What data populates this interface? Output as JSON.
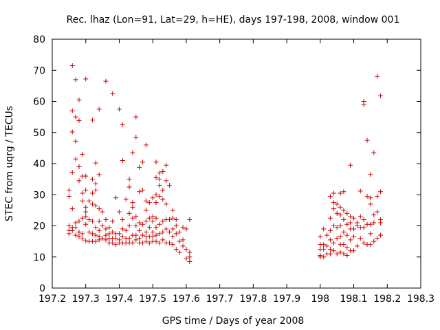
{
  "chart_data": {
    "type": "scatter",
    "title": "Rec. lhaz (Lon=91, Lat=29, h=HE), days 197-198, 2008, window 001",
    "xlabel": "GPS time / Days of year 2008",
    "ylabel": "STEC from uqrg / TECUs",
    "xlim": [
      197.2,
      198.3
    ],
    "ylim": [
      0,
      80
    ],
    "xticks": [
      197.2,
      197.3,
      197.4,
      197.5,
      197.6,
      197.7,
      197.8,
      197.9,
      198,
      198.1,
      198.2,
      198.3
    ],
    "xtick_labels": [
      "197.2",
      "197.3",
      "197.4",
      "197.5",
      "197.6",
      "197.7",
      "197.8",
      "197.9",
      "198",
      "198.1",
      "198.2",
      "198.3"
    ],
    "yticks": [
      0,
      10,
      20,
      30,
      40,
      50,
      60,
      70,
      80
    ],
    "ytick_labels": [
      "0",
      "10",
      "20",
      "30",
      "40",
      "50",
      "60",
      "70",
      "80"
    ],
    "marker": "+",
    "marker_color": "#cc0000",
    "grid": false,
    "series": [
      {
        "name": "STEC",
        "points": [
          [
            197.25,
            31.5
          ],
          [
            197.25,
            29.5
          ],
          [
            197.25,
            20
          ],
          [
            197.25,
            18.5
          ],
          [
            197.25,
            17.5
          ],
          [
            197.26,
            71.5
          ],
          [
            197.26,
            57
          ],
          [
            197.26,
            50.2
          ],
          [
            197.26,
            37.2
          ],
          [
            197.26,
            25.5
          ],
          [
            197.26,
            19.5
          ],
          [
            197.26,
            18.5
          ],
          [
            197.27,
            67
          ],
          [
            197.27,
            55
          ],
          [
            197.27,
            47.2
          ],
          [
            197.27,
            41.5
          ],
          [
            197.27,
            21
          ],
          [
            197.27,
            19.5
          ],
          [
            197.27,
            17
          ],
          [
            197.28,
            60.5
          ],
          [
            197.28,
            53.8
          ],
          [
            197.28,
            39
          ],
          [
            197.28,
            34.5
          ],
          [
            197.28,
            21.5
          ],
          [
            197.28,
            18
          ],
          [
            197.28,
            16.5
          ],
          [
            197.29,
            43
          ],
          [
            197.29,
            36
          ],
          [
            197.29,
            30.5
          ],
          [
            197.29,
            28
          ],
          [
            197.29,
            22.5
          ],
          [
            197.29,
            17.5
          ],
          [
            197.29,
            15.8
          ],
          [
            197.3,
            67.2
          ],
          [
            197.3,
            36
          ],
          [
            197.3,
            31.5
          ],
          [
            197.3,
            26
          ],
          [
            197.3,
            24.5
          ],
          [
            197.3,
            23
          ],
          [
            197.3,
            20.5
          ],
          [
            197.3,
            15.2
          ],
          [
            197.31,
            28
          ],
          [
            197.31,
            22
          ],
          [
            197.31,
            18
          ],
          [
            197.31,
            15
          ],
          [
            197.32,
            54
          ],
          [
            197.32,
            35
          ],
          [
            197.32,
            30.5
          ],
          [
            197.32,
            27
          ],
          [
            197.32,
            21.5
          ],
          [
            197.32,
            17.5
          ],
          [
            197.32,
            15
          ],
          [
            197.33,
            40.2
          ],
          [
            197.33,
            33.5
          ],
          [
            197.33,
            31.5
          ],
          [
            197.33,
            26.5
          ],
          [
            197.33,
            19.5
          ],
          [
            197.33,
            17
          ],
          [
            197.33,
            15
          ],
          [
            197.34,
            57.5
          ],
          [
            197.34,
            36.5
          ],
          [
            197.34,
            25.5
          ],
          [
            197.34,
            21.5
          ],
          [
            197.34,
            18.5
          ],
          [
            197.34,
            16.5
          ],
          [
            197.34,
            15.5
          ],
          [
            197.35,
            24.5
          ],
          [
            197.35,
            20
          ],
          [
            197.35,
            16
          ],
          [
            197.36,
            66.5
          ],
          [
            197.36,
            22
          ],
          [
            197.36,
            19
          ],
          [
            197.36,
            17
          ],
          [
            197.36,
            15.5
          ],
          [
            197.37,
            19.5
          ],
          [
            197.37,
            17.5
          ],
          [
            197.37,
            16
          ],
          [
            197.37,
            14.5
          ],
          [
            197.38,
            62.5
          ],
          [
            197.38,
            21.5
          ],
          [
            197.38,
            18
          ],
          [
            197.38,
            16
          ],
          [
            197.38,
            14.5
          ],
          [
            197.39,
            29
          ],
          [
            197.39,
            17.5
          ],
          [
            197.39,
            16
          ],
          [
            197.39,
            14
          ],
          [
            197.4,
            57.5
          ],
          [
            197.4,
            24.5
          ],
          [
            197.4,
            17.5
          ],
          [
            197.4,
            15.5
          ],
          [
            197.4,
            14.5
          ],
          [
            197.41,
            52.5
          ],
          [
            197.41,
            41
          ],
          [
            197.41,
            22
          ],
          [
            197.41,
            19
          ],
          [
            197.41,
            16.5
          ],
          [
            197.41,
            14.5
          ],
          [
            197.42,
            28.5
          ],
          [
            197.42,
            18.5
          ],
          [
            197.42,
            16
          ],
          [
            197.42,
            14.5
          ],
          [
            197.43,
            35
          ],
          [
            197.43,
            32.5
          ],
          [
            197.43,
            24
          ],
          [
            197.43,
            20
          ],
          [
            197.43,
            16
          ],
          [
            197.43,
            14.5
          ],
          [
            197.44,
            43.5
          ],
          [
            197.44,
            27.5
          ],
          [
            197.44,
            26
          ],
          [
            197.44,
            22.5
          ],
          [
            197.44,
            17
          ],
          [
            197.44,
            14.5
          ],
          [
            197.45,
            55
          ],
          [
            197.45,
            48.5
          ],
          [
            197.45,
            23
          ],
          [
            197.45,
            20
          ],
          [
            197.45,
            17
          ],
          [
            197.45,
            15.5
          ],
          [
            197.46,
            38.8
          ],
          [
            197.46,
            31
          ],
          [
            197.46,
            21
          ],
          [
            197.46,
            18.5
          ],
          [
            197.46,
            16
          ],
          [
            197.46,
            14.5
          ],
          [
            197.47,
            40.5
          ],
          [
            197.47,
            31.5
          ],
          [
            197.47,
            20.5
          ],
          [
            197.47,
            17
          ],
          [
            197.47,
            14.5
          ],
          [
            197.48,
            46
          ],
          [
            197.48,
            28
          ],
          [
            197.48,
            25
          ],
          [
            197.48,
            21.5
          ],
          [
            197.48,
            18
          ],
          [
            197.48,
            16.5
          ],
          [
            197.48,
            15
          ],
          [
            197.49,
            27.5
          ],
          [
            197.49,
            22.5
          ],
          [
            197.49,
            19.5
          ],
          [
            197.49,
            16.5
          ],
          [
            197.49,
            14.5
          ],
          [
            197.5,
            29
          ],
          [
            197.5,
            23
          ],
          [
            197.5,
            21.5
          ],
          [
            197.5,
            18
          ],
          [
            197.5,
            16.5
          ],
          [
            197.5,
            15
          ],
          [
            197.51,
            40.5
          ],
          [
            197.51,
            35.5
          ],
          [
            197.51,
            30
          ],
          [
            197.51,
            27.5
          ],
          [
            197.51,
            22.5
          ],
          [
            197.51,
            19.5
          ],
          [
            197.51,
            17
          ],
          [
            197.51,
            15
          ],
          [
            197.52,
            37
          ],
          [
            197.52,
            35
          ],
          [
            197.52,
            33
          ],
          [
            197.52,
            29.5
          ],
          [
            197.52,
            20.5
          ],
          [
            197.52,
            17.5
          ],
          [
            197.52,
            14.5
          ],
          [
            197.53,
            37.5
          ],
          [
            197.53,
            31.5
          ],
          [
            197.53,
            28.5
          ],
          [
            197.53,
            21.5
          ],
          [
            197.53,
            18
          ],
          [
            197.53,
            15.5
          ],
          [
            197.54,
            39.5
          ],
          [
            197.54,
            34.5
          ],
          [
            197.54,
            27
          ],
          [
            197.54,
            22
          ],
          [
            197.54,
            19
          ],
          [
            197.54,
            14.5
          ],
          [
            197.55,
            33
          ],
          [
            197.55,
            22
          ],
          [
            197.55,
            18
          ],
          [
            197.55,
            14.5
          ],
          [
            197.56,
            25
          ],
          [
            197.56,
            22.5
          ],
          [
            197.56,
            19
          ],
          [
            197.56,
            16.5
          ],
          [
            197.56,
            14
          ],
          [
            197.57,
            22
          ],
          [
            197.57,
            20
          ],
          [
            197.57,
            17.5
          ],
          [
            197.57,
            12.5
          ],
          [
            197.58,
            18
          ],
          [
            197.58,
            15
          ],
          [
            197.58,
            11.5
          ],
          [
            197.59,
            19.5
          ],
          [
            197.59,
            15.5
          ],
          [
            197.59,
            13.5
          ],
          [
            197.6,
            19
          ],
          [
            197.6,
            12.5
          ],
          [
            197.6,
            9.5
          ],
          [
            197.61,
            22
          ],
          [
            197.61,
            11.5
          ],
          [
            197.61,
            10
          ],
          [
            197.61,
            8.5
          ],
          [
            198.0,
            16.5
          ],
          [
            198.0,
            14
          ],
          [
            198.0,
            12.5
          ],
          [
            198.0,
            10.5
          ],
          [
            198.0,
            10
          ],
          [
            198.01,
            19
          ],
          [
            198.01,
            14
          ],
          [
            198.01,
            12.5
          ],
          [
            198.01,
            10
          ],
          [
            198.02,
            17
          ],
          [
            198.02,
            13.5
          ],
          [
            198.02,
            11
          ],
          [
            198.03,
            29.5
          ],
          [
            198.03,
            22.5
          ],
          [
            198.03,
            18.5
          ],
          [
            198.03,
            15.5
          ],
          [
            198.03,
            12.5
          ],
          [
            198.03,
            11
          ],
          [
            198.04,
            30.5
          ],
          [
            198.04,
            27.5
          ],
          [
            198.04,
            25.5
          ],
          [
            198.04,
            20
          ],
          [
            198.04,
            14.5
          ],
          [
            198.04,
            12
          ],
          [
            198.05,
            27
          ],
          [
            198.05,
            24
          ],
          [
            198.05,
            19.5
          ],
          [
            198.05,
            16
          ],
          [
            198.05,
            11
          ],
          [
            198.06,
            30.5
          ],
          [
            198.06,
            26
          ],
          [
            198.06,
            23.5
          ],
          [
            198.06,
            20
          ],
          [
            198.06,
            16.5
          ],
          [
            198.06,
            14
          ],
          [
            198.06,
            11.5
          ],
          [
            198.07,
            31
          ],
          [
            198.07,
            25
          ],
          [
            198.07,
            22
          ],
          [
            198.07,
            18
          ],
          [
            198.07,
            14
          ],
          [
            198.07,
            11
          ],
          [
            198.08,
            24
          ],
          [
            198.08,
            20.5
          ],
          [
            198.08,
            17
          ],
          [
            198.08,
            13
          ],
          [
            198.08,
            10.5
          ],
          [
            198.09,
            39.5
          ],
          [
            198.09,
            23
          ],
          [
            198.09,
            21
          ],
          [
            198.09,
            19
          ],
          [
            198.09,
            15.5
          ],
          [
            198.09,
            12
          ],
          [
            198.1,
            22.5
          ],
          [
            198.1,
            19
          ],
          [
            198.1,
            16.5
          ],
          [
            198.1,
            12
          ],
          [
            198.11,
            21
          ],
          [
            198.11,
            20
          ],
          [
            198.11,
            13.5
          ],
          [
            198.12,
            31.2
          ],
          [
            198.12,
            23
          ],
          [
            198.12,
            19.5
          ],
          [
            198.12,
            16
          ],
          [
            198.13,
            60
          ],
          [
            198.13,
            59
          ],
          [
            198.13,
            22
          ],
          [
            198.13,
            19.5
          ],
          [
            198.13,
            14.5
          ],
          [
            198.14,
            47.5
          ],
          [
            198.14,
            29.5
          ],
          [
            198.14,
            20.5
          ],
          [
            198.14,
            14
          ],
          [
            198.15,
            36.5
          ],
          [
            198.15,
            29
          ],
          [
            198.15,
            27
          ],
          [
            198.15,
            20.5
          ],
          [
            198.15,
            17.5
          ],
          [
            198.15,
            14
          ],
          [
            198.16,
            43.5
          ],
          [
            198.16,
            23.5
          ],
          [
            198.16,
            21
          ],
          [
            198.16,
            15
          ],
          [
            198.17,
            68
          ],
          [
            198.17,
            29.5
          ],
          [
            198.17,
            24.5
          ],
          [
            198.17,
            16
          ],
          [
            198.18,
            61.8
          ],
          [
            198.18,
            31
          ],
          [
            198.18,
            22
          ],
          [
            198.18,
            21
          ],
          [
            198.18,
            17
          ]
        ]
      }
    ]
  }
}
